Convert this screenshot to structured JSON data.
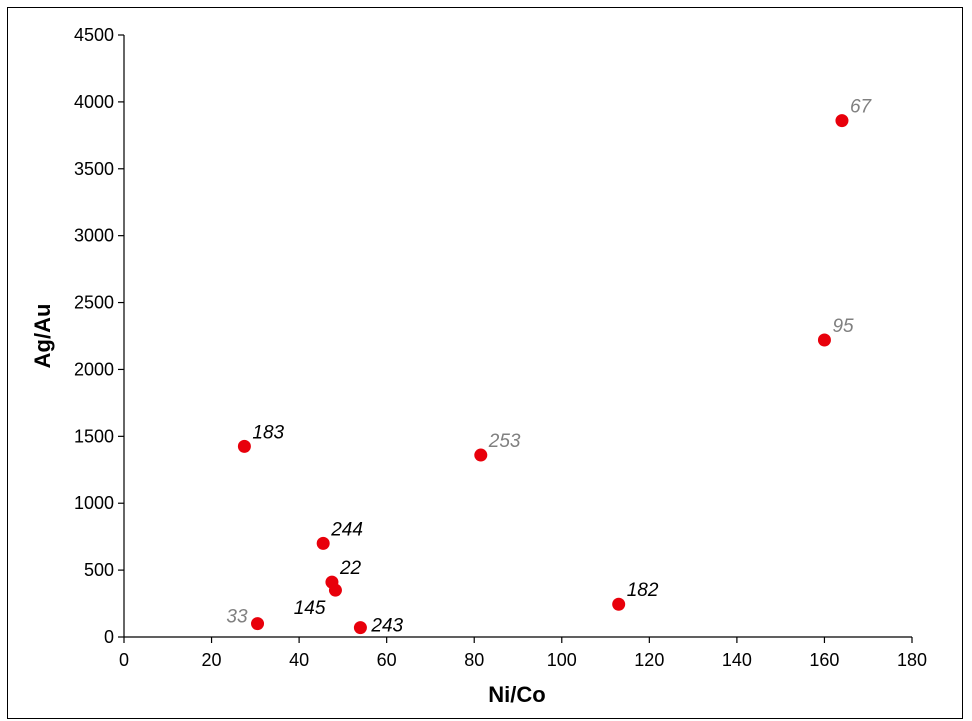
{
  "chart_data": {
    "type": "scatter",
    "title": "",
    "xlabel": "Ni/Co",
    "ylabel": "Ag/Au",
    "xlim": [
      0,
      180
    ],
    "ylim": [
      0,
      4500
    ],
    "xticks": [
      0,
      20,
      40,
      60,
      80,
      100,
      120,
      140,
      160,
      180
    ],
    "yticks": [
      0,
      500,
      1000,
      1500,
      2000,
      2500,
      3000,
      3500,
      4000,
      4500
    ],
    "grid": false,
    "marker_color": "#e8000b",
    "points": [
      {
        "label": "67",
        "x": 164,
        "y": 3860,
        "label_color": "#808080",
        "label_pos": "upper-right"
      },
      {
        "label": "95",
        "x": 160,
        "y": 2220,
        "label_color": "#808080",
        "label_pos": "upper-right"
      },
      {
        "label": "183",
        "x": 27.5,
        "y": 1425,
        "label_color": "#000000",
        "label_pos": "upper-right"
      },
      {
        "label": "253",
        "x": 81.5,
        "y": 1360,
        "label_color": "#808080",
        "label_pos": "upper-right"
      },
      {
        "label": "244",
        "x": 45.5,
        "y": 700,
        "label_color": "#000000",
        "label_pos": "upper-right"
      },
      {
        "label": "22",
        "x": 47.5,
        "y": 410,
        "label_color": "#000000",
        "label_pos": "upper-right"
      },
      {
        "label": "145",
        "x": 48.3,
        "y": 350,
        "label_color": "#000000",
        "label_pos": "lower-left"
      },
      {
        "label": "182",
        "x": 113,
        "y": 245,
        "label_color": "#000000",
        "label_pos": "upper-right"
      },
      {
        "label": "33",
        "x": 30.5,
        "y": 100,
        "label_color": "#808080",
        "label_pos": "left"
      },
      {
        "label": "243",
        "x": 54,
        "y": 70,
        "label_color": "#000000",
        "label_pos": "right"
      }
    ]
  }
}
